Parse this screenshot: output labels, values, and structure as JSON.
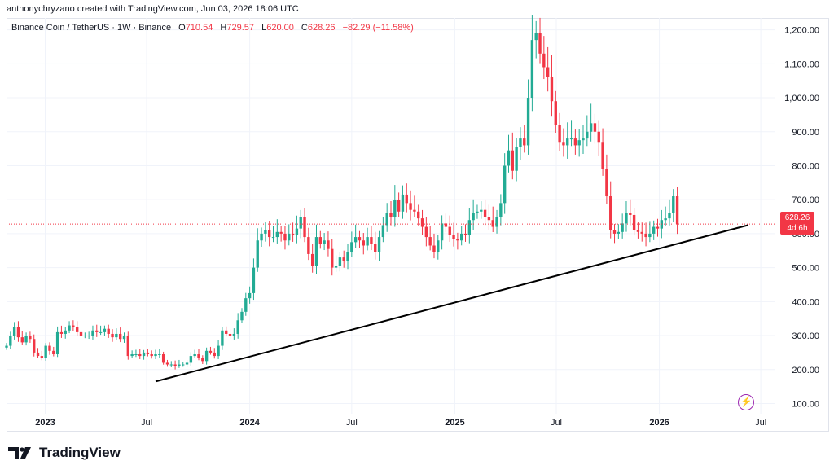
{
  "header": {
    "attribution": "anthonychryzano created with TradingView.com, Jun 03, 2026 18:06 UTC"
  },
  "legend": {
    "symbol": "Binance Coin / TetherUS · 1W · Binance",
    "open_label": "O",
    "open": "710.54",
    "high_label": "H",
    "high": "729.57",
    "low_label": "L",
    "low": "620.00",
    "close_label": "C",
    "close": "628.26",
    "change": "−82.29 (−11.58%)"
  },
  "price_badge": {
    "price": "628.26",
    "countdown": "4d 6h"
  },
  "colors": {
    "up": "#22ab94",
    "down": "#f23645",
    "trendline": "#000000",
    "grid": "#f0f3fa"
  },
  "footer": {
    "brand": "TradingView",
    "logo_icon": "tradingview-logo-icon"
  },
  "chart_data": {
    "type": "candlestick",
    "timeframe": "1W",
    "y_axis": {
      "ticks": [
        100,
        200,
        300,
        400,
        500,
        600,
        700,
        800,
        900,
        1000,
        1100,
        1200
      ],
      "tick_labels": [
        "100.00",
        "200.00",
        "300.00",
        "400.00",
        "500.00",
        "600.00",
        "700.00",
        "800.00",
        "900.00",
        "1,000.00",
        "1,100.00",
        "1,200.00"
      ],
      "ylim": [
        70,
        1235
      ]
    },
    "x_axis": {
      "tick_labels": [
        "2023",
        "Jul",
        "2024",
        "Jul",
        "2025",
        "Jul",
        "2026",
        "Jul"
      ],
      "tick_dates": [
        "2023-01-01",
        "2023-07-01",
        "2024-01-01",
        "2024-07-01",
        "2025-01-01",
        "2025-07-01",
        "2026-01-01",
        "2026-07-01"
      ],
      "xlim": [
        "2022-10-24",
        "2026-07-27"
      ]
    },
    "last_price": 628.26,
    "trendline": {
      "from": {
        "date": "2023-07-17",
        "price": 165
      },
      "to": {
        "date": "2026-06-08",
        "price": 625
      }
    },
    "weekly_closes": [
      270,
      300,
      325,
      295,
      280,
      300,
      290,
      250,
      240,
      235,
      270,
      255,
      245,
      310,
      305,
      315,
      330,
      325,
      310,
      300,
      300,
      300,
      315,
      310,
      310,
      320,
      305,
      295,
      305,
      290,
      300,
      240,
      245,
      245,
      240,
      250,
      245,
      240,
      245,
      245,
      220,
      215,
      215,
      210,
      215,
      215,
      220,
      240,
      245,
      235,
      225,
      255,
      250,
      240,
      270,
      315,
      305,
      300,
      305,
      345,
      370,
      410,
      425,
      500,
      580,
      600,
      610,
      590,
      590,
      605,
      600,
      580,
      600,
      595,
      615,
      650,
      590,
      540,
      505,
      590,
      570,
      580,
      555,
      500,
      505,
      530,
      520,
      545,
      575,
      590,
      580,
      565,
      590,
      570,
      545,
      590,
      625,
      660,
      650,
      700,
      665,
      715,
      690,
      670,
      665,
      645,
      620,
      590,
      565,
      545,
      580,
      630,
      620,
      595,
      585,
      580,
      600,
      595,
      640,
      660,
      665,
      670,
      650,
      640,
      620,
      650,
      690,
      800,
      845,
      785,
      855,
      880,
      860,
      1000,
      1170,
      1190,
      1130,
      1090,
      1060,
      990,
      920,
      870,
      860,
      880,
      880,
      860,
      875,
      880,
      900,
      925,
      900,
      870,
      790,
      710,
      610,
      600,
      605,
      630,
      660,
      655,
      610,
      605,
      600,
      590,
      600,
      620,
      615,
      640,
      645,
      660,
      710,
      628.26
    ]
  }
}
